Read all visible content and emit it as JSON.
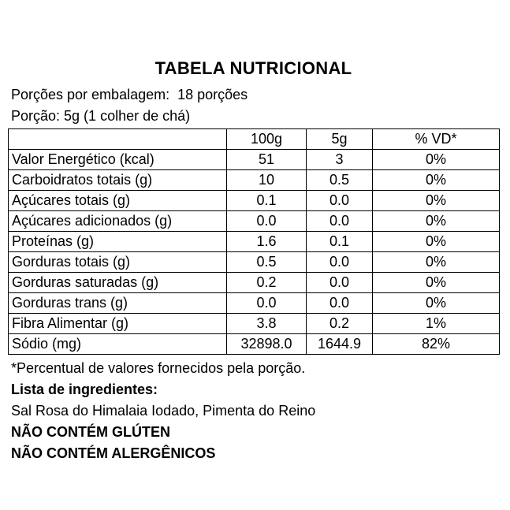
{
  "title": "TABELA NUTRICIONAL",
  "intro": {
    "servings_line": "Porções por embalagem:  18 porções",
    "portion_line": "Porção: 5g (1 colher de chá)"
  },
  "table": {
    "columns": [
      "",
      "100g",
      "5g",
      "% VD*"
    ],
    "rows": [
      {
        "label": "Valor Energético (kcal)",
        "per100g": "51",
        "per5g": "3",
        "vd": "0%"
      },
      {
        "label": "Carboidratos totais (g)",
        "per100g": "10",
        "per5g": "0.5",
        "vd": "0%"
      },
      {
        "label": "Açúcares totais (g)",
        "per100g": "0.1",
        "per5g": "0.0",
        "vd": "0%"
      },
      {
        "label": "Açúcares adicionados (g)",
        "per100g": "0.0",
        "per5g": "0.0",
        "vd": "0%"
      },
      {
        "label": "Proteínas (g)",
        "per100g": "1.6",
        "per5g": "0.1",
        "vd": "0%"
      },
      {
        "label": "Gorduras totais (g)",
        "per100g": "0.5",
        "per5g": "0.0",
        "vd": "0%"
      },
      {
        "label": "Gorduras saturadas (g)",
        "per100g": "0.2",
        "per5g": "0.0",
        "vd": "0%"
      },
      {
        "label": "Gorduras trans (g)",
        "per100g": "0.0",
        "per5g": "0.0",
        "vd": "0%"
      },
      {
        "label": "Fibra Alimentar (g)",
        "per100g": "3.8",
        "per5g": "0.2",
        "vd": "1%"
      },
      {
        "label": "Sódio (mg)",
        "per100g": "32898.0",
        "per5g": "1644.9",
        "vd": "82%"
      }
    ]
  },
  "footer": {
    "footnote": "*Percentual de valores fornecidos pela porção.",
    "ingredients_heading": "Lista de ingredientes:",
    "ingredients": "Sal Rosa do Himalaia Iodado, Pimenta do Reino"
  },
  "claims": [
    "NÃO CONTÉM GLÚTEN",
    "NÃO CONTÉM ALERGÊNICOS"
  ],
  "colors": {
    "text": "#000000",
    "background": "#ffffff",
    "table_border": "#000000"
  }
}
